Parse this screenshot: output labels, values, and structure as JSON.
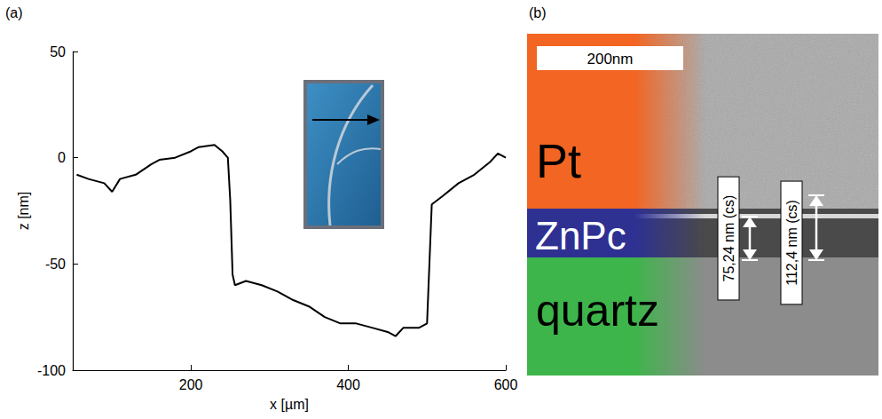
{
  "chart_data": {
    "type": "line",
    "panel_label": "(a)",
    "x_label": "x [µm]",
    "y_label": "z [nm]",
    "x": [
      55,
      70,
      90,
      100,
      110,
      130,
      150,
      160,
      180,
      200,
      210,
      230,
      240,
      247,
      250,
      253,
      256,
      270,
      290,
      310,
      330,
      350,
      370,
      390,
      410,
      430,
      450,
      460,
      470,
      490,
      500,
      503,
      506,
      520,
      540,
      560,
      580,
      590,
      600
    ],
    "values": [
      -8,
      -10,
      -12,
      -16,
      -10,
      -8,
      -3,
      -1,
      0,
      3,
      5,
      6,
      3,
      0,
      -20,
      -55,
      -60,
      -58,
      -60,
      -63,
      -67,
      -70,
      -75,
      -78,
      -78,
      -80,
      -82,
      -84,
      -80,
      -80,
      -78,
      -50,
      -22,
      -18,
      -12,
      -8,
      -2,
      2,
      0
    ],
    "color": "#000000",
    "xlim": [
      50,
      600
    ],
    "xticks": [
      200,
      400,
      600
    ],
    "ylim": [
      -100,
      50
    ],
    "yticks": [
      -100,
      -50,
      0,
      50
    ],
    "grid": false
  },
  "image_panel": {
    "panel_label": "(b)",
    "scale_bar": {
      "label": "200nm",
      "value": 200
    },
    "layers": [
      {
        "label": "Pt",
        "color": "#f26522"
      },
      {
        "label": "ZnPc",
        "color": "#2e3192"
      },
      {
        "label": "quartz",
        "color": "#3db54a"
      }
    ],
    "measurements": [
      {
        "label": "75,24 nm (cs)",
        "value": 75.24
      },
      {
        "label": "112,4 nm (cs)",
        "value": 112.4
      }
    ]
  }
}
